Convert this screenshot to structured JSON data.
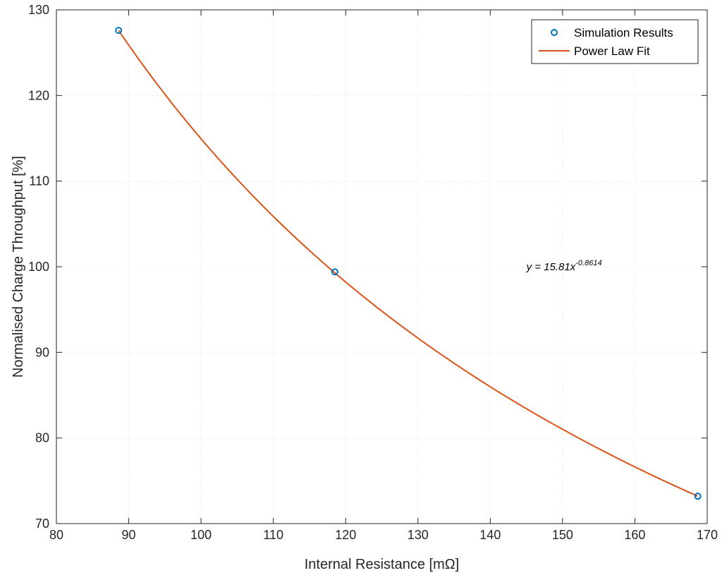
{
  "chart_data": {
    "type": "scatter",
    "title": "",
    "xlabel": "Internal Resistance [mΩ]",
    "ylabel": "Normalised Charge Throughput [%]",
    "xlim": [
      80,
      170
    ],
    "ylim": [
      70,
      130
    ],
    "xticks": [
      80,
      90,
      100,
      110,
      120,
      130,
      140,
      150,
      160,
      170
    ],
    "yticks": [
      70,
      80,
      90,
      100,
      110,
      120,
      130
    ],
    "grid": true,
    "legend_position": "top-right",
    "series": [
      {
        "name": "Simulation Results",
        "kind": "markers",
        "marker": "circle",
        "color": "#0072BD",
        "x": [
          88.6,
          118.5,
          168.7
        ],
        "y": [
          127.6,
          99.4,
          73.2
        ]
      },
      {
        "name": "Power Law Fit",
        "kind": "line",
        "color": "#D95319",
        "equation": {
          "coefficient": 15.81,
          "exponent": -0.8614
        },
        "x_range": [
          88.6,
          168.7
        ]
      }
    ],
    "annotations": [
      {
        "text_main": "y = 15.81x",
        "text_exponent": "-0.8614",
        "x": 145,
        "y": 100
      }
    ]
  }
}
